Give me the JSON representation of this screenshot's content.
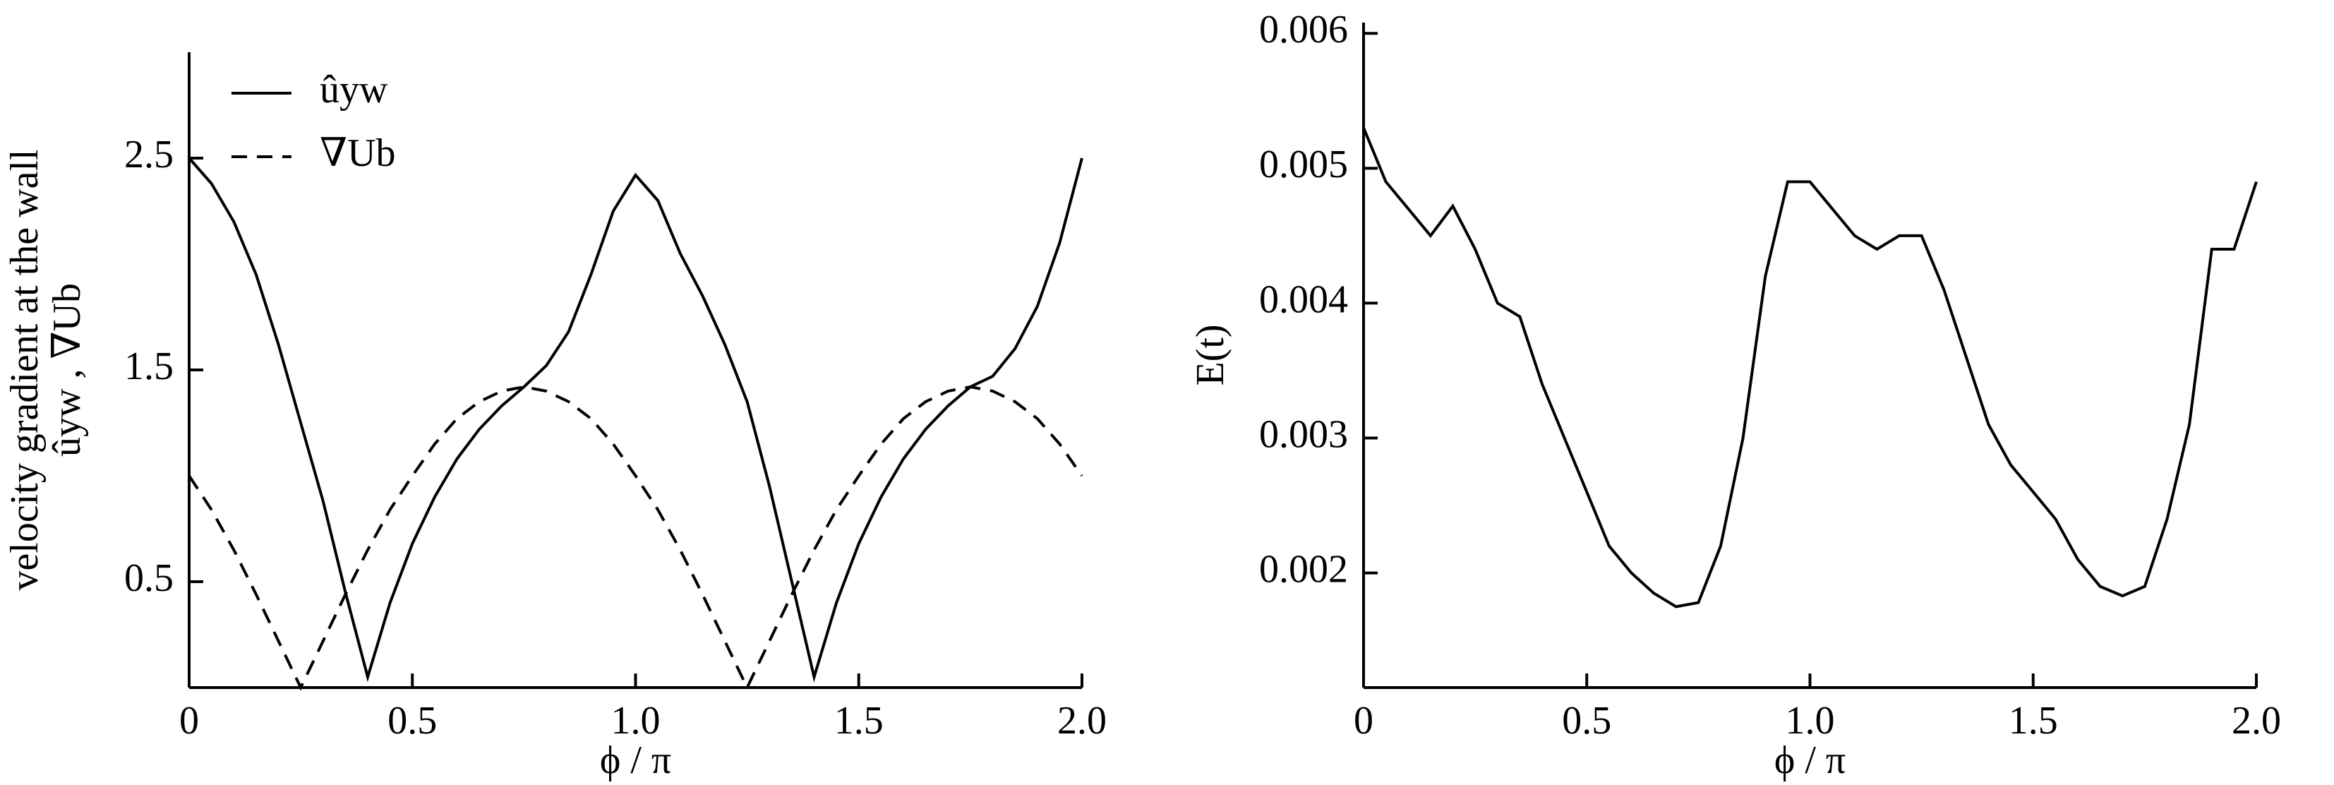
{
  "chart_data": [
    {
      "type": "line",
      "y_label": "velocity gradient at the wall",
      "y_label_2": "ûyw , ∇Ub",
      "x_label": "ϕ / π",
      "x": [
        0,
        0.05,
        0.1,
        0.15,
        0.2,
        0.25,
        0.3,
        0.35,
        0.4,
        0.45,
        0.5,
        0.55,
        0.6,
        0.65,
        0.7,
        0.75,
        0.8,
        0.85,
        0.9,
        0.95,
        1.0,
        1.05,
        1.1,
        1.15,
        1.2,
        1.25,
        1.3,
        1.35,
        1.4,
        1.45,
        1.5,
        1.55,
        1.6,
        1.65,
        1.7,
        1.75,
        1.8,
        1.85,
        1.9,
        1.95,
        2.0
      ],
      "series": [
        {
          "name": "ûyw",
          "color": "#000000",
          "style": "solid",
          "values": [
            2.5,
            2.38,
            2.2,
            1.95,
            1.62,
            1.25,
            0.88,
            0.45,
            0.05,
            0.4,
            0.68,
            0.9,
            1.08,
            1.22,
            1.33,
            1.42,
            1.52,
            1.68,
            1.95,
            2.25,
            2.42,
            2.3,
            2.05,
            1.85,
            1.62,
            1.35,
            0.95,
            0.5,
            0.05,
            0.4,
            0.68,
            0.9,
            1.08,
            1.22,
            1.33,
            1.42,
            1.47,
            1.6,
            1.8,
            2.1,
            2.5
          ]
        },
        {
          "name": "∇Ub",
          "color": "#000000",
          "style": "dashed",
          "values": [
            1.0,
            0.84,
            0.65,
            0.44,
            0.22,
            0,
            0.22,
            0.44,
            0.65,
            0.84,
            1.0,
            1.15,
            1.27,
            1.35,
            1.4,
            1.42,
            1.4,
            1.35,
            1.27,
            1.15,
            1.0,
            0.84,
            0.65,
            0.44,
            0.22,
            0,
            0.22,
            0.44,
            0.65,
            0.84,
            1.0,
            1.15,
            1.27,
            1.35,
            1.4,
            1.42,
            1.4,
            1.35,
            1.27,
            1.15,
            1.0
          ]
        }
      ],
      "xlim": [
        0,
        2
      ],
      "xticks": [
        0,
        0.5,
        {
          "value": 1,
          "label": "1.0"
        },
        1.5,
        {
          "value": 2,
          "label": "2.0"
        }
      ],
      "ylim": [
        0,
        3
      ],
      "yticks": [
        0.5,
        1.5,
        2.5
      ],
      "legend": "upper-left"
    },
    {
      "type": "line",
      "y_label": "E(t)",
      "x_label": "ϕ / π",
      "x": [
        0,
        0.05,
        0.1,
        0.15,
        0.2,
        0.25,
        0.3,
        0.35,
        0.4,
        0.45,
        0.5,
        0.55,
        0.6,
        0.65,
        0.7,
        0.75,
        0.8,
        0.85,
        0.9,
        0.95,
        1.0,
        1.05,
        1.1,
        1.15,
        1.2,
        1.25,
        1.3,
        1.35,
        1.4,
        1.45,
        1.5,
        1.55,
        1.6,
        1.65,
        1.7,
        1.75,
        1.8,
        1.85,
        1.9,
        1.95,
        2.0
      ],
      "series": [
        {
          "color": "#000000",
          "style": "solid",
          "values": [
            0.0053,
            0.0049,
            0.0047,
            0.0045,
            0.00472,
            0.0044,
            0.004,
            0.0039,
            0.0034,
            0.003,
            0.0026,
            0.0022,
            0.002,
            0.00185,
            0.00175,
            0.00178,
            0.0022,
            0.003,
            0.0042,
            0.0049,
            0.0049,
            0.0047,
            0.0045,
            0.0044,
            0.0045,
            0.0045,
            0.0041,
            0.0036,
            0.0031,
            0.0028,
            0.0026,
            0.0024,
            0.0021,
            0.0019,
            0.00183,
            0.0019,
            0.0024,
            0.0031,
            0.0044,
            0.0044,
            0.0049
          ]
        }
      ],
      "xlim": [
        0,
        2
      ],
      "xticks": [
        0,
        0.5,
        {
          "value": 1,
          "label": "1.0"
        },
        1.5,
        {
          "value": 2,
          "label": "2.0"
        }
      ],
      "ylim": [
        0.00115,
        0.00608
      ],
      "yticks": [
        0.002,
        0.003,
        0.004,
        0.005,
        0.006
      ]
    }
  ]
}
